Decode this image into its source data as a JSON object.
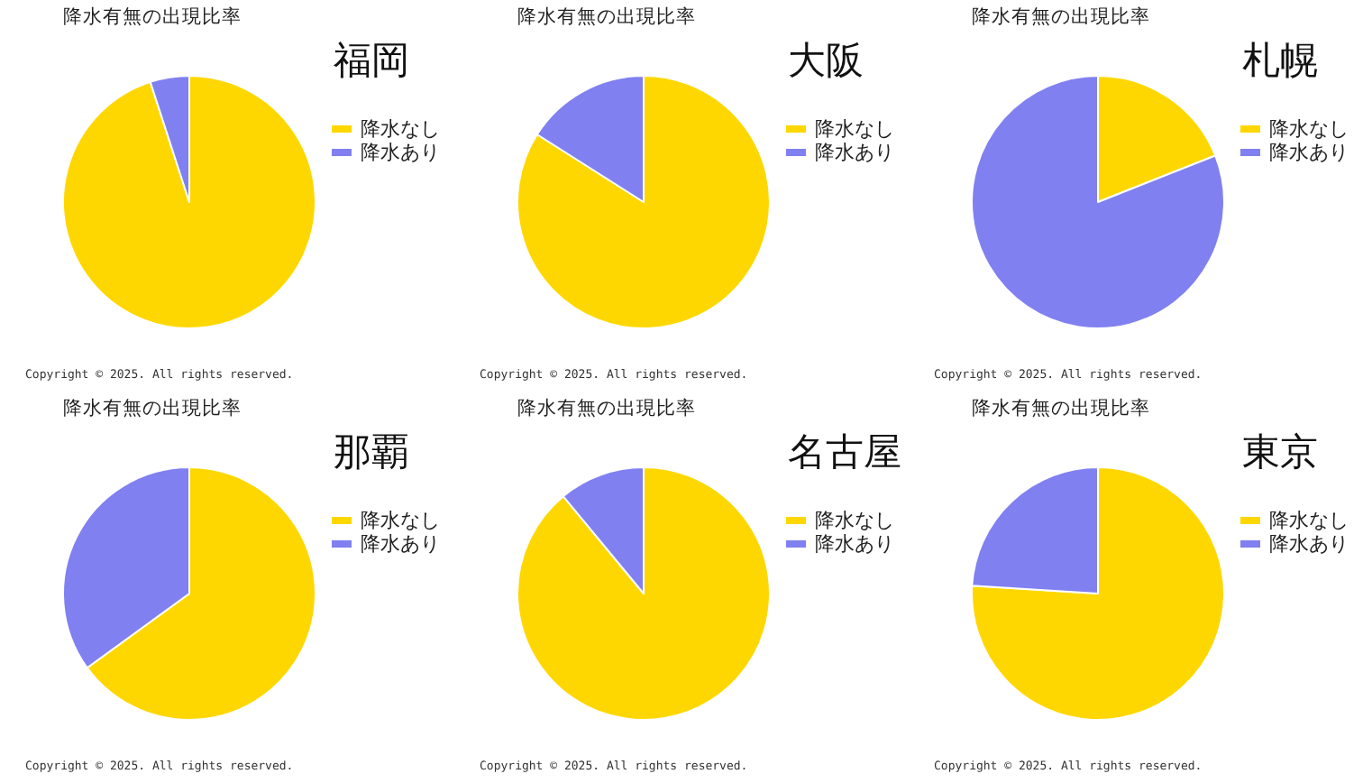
{
  "chart_data": [
    {
      "type": "pie",
      "title": "降水有無の出現比率",
      "subtitle": "福岡",
      "categories": [
        "降水なし",
        "降水あり"
      ],
      "values": [
        95,
        5
      ],
      "colors": [
        "#ffd700",
        "#8080f0"
      ],
      "legend": "right",
      "annotations": [
        "Copyright © 2025. All rights reserved."
      ]
    },
    {
      "type": "pie",
      "title": "降水有無の出現比率",
      "subtitle": "大阪",
      "categories": [
        "降水なし",
        "降水あり"
      ],
      "values": [
        84,
        16
      ],
      "colors": [
        "#ffd700",
        "#8080f0"
      ],
      "legend": "right",
      "annotations": [
        "Copyright © 2025. All rights reserved."
      ]
    },
    {
      "type": "pie",
      "title": "降水有無の出現比率",
      "subtitle": "札幌",
      "categories": [
        "降水なし",
        "降水あり"
      ],
      "values": [
        19,
        81
      ],
      "colors": [
        "#ffd700",
        "#8080f0"
      ],
      "legend": "right",
      "annotations": [
        "Copyright © 2025. All rights reserved."
      ]
    },
    {
      "type": "pie",
      "title": "降水有無の出現比率",
      "subtitle": "那覇",
      "categories": [
        "降水なし",
        "降水あり"
      ],
      "values": [
        65,
        35
      ],
      "colors": [
        "#ffd700",
        "#8080f0"
      ],
      "legend": "right",
      "annotations": [
        "Copyright © 2025. All rights reserved."
      ]
    },
    {
      "type": "pie",
      "title": "降水有無の出現比率",
      "subtitle": "名古屋",
      "categories": [
        "降水なし",
        "降水あり"
      ],
      "values": [
        89,
        11
      ],
      "colors": [
        "#ffd700",
        "#8080f0"
      ],
      "legend": "right",
      "annotations": [
        "Copyright © 2025. All rights reserved."
      ]
    },
    {
      "type": "pie",
      "title": "降水有無の出現比率",
      "subtitle": "東京",
      "categories": [
        "降水なし",
        "降水あり"
      ],
      "values": [
        76,
        24
      ],
      "colors": [
        "#ffd700",
        "#8080f0"
      ],
      "legend": "right",
      "annotations": [
        "Copyright © 2025. All rights reserved."
      ]
    }
  ]
}
